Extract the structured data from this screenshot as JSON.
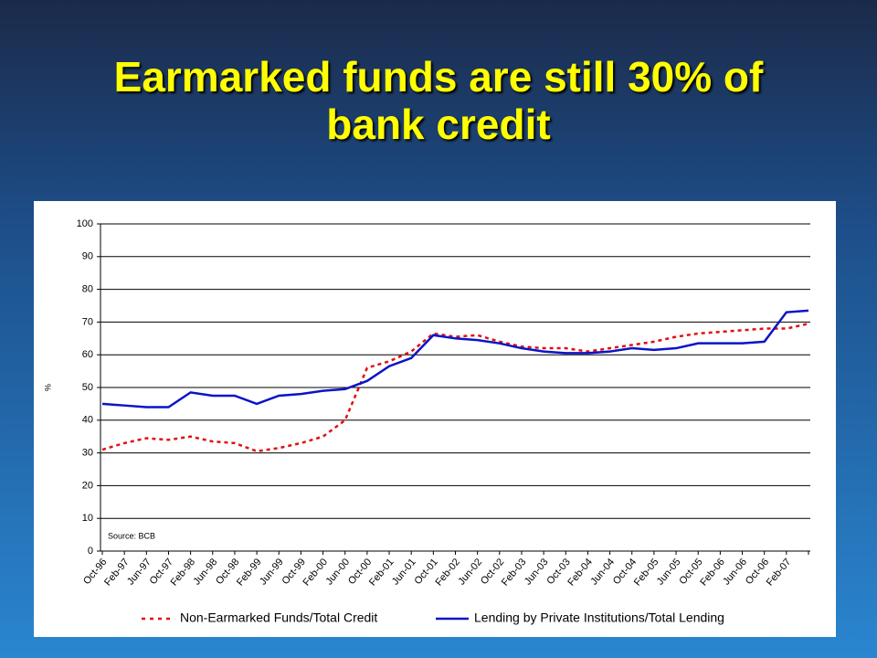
{
  "title": "Earmarked funds are still 30% of bank credit",
  "chart_data": {
    "type": "line",
    "y_label": "%",
    "annotation": "Source: BCB",
    "categories": [
      "Oct-96",
      "Feb-97",
      "Jun-97",
      "Oct-97",
      "Feb-98",
      "Jun-98",
      "Oct-98",
      "Feb-99",
      "Jun-99",
      "Oct-99",
      "Feb-00",
      "Jun-00",
      "Oct-00",
      "Feb-01",
      "Jun-01",
      "Oct-01",
      "Feb-02",
      "Jun-02",
      "Oct-02",
      "Feb-03",
      "Jun-03",
      "Oct-03",
      "Feb-04",
      "Jun-04",
      "Oct-04",
      "Feb-05",
      "Jun-05",
      "Oct-05",
      "Feb-06",
      "Jun-06",
      "Oct-06",
      "Feb-07",
      null
    ],
    "series": [
      {
        "name": "Non-Earmarked Funds/Total Credit",
        "color": "#e01010",
        "dashed": true,
        "values": [
          31,
          33,
          34.5,
          34,
          35,
          33.5,
          33,
          30.5,
          31.5,
          33,
          35,
          40,
          56,
          58,
          61,
          66.5,
          65.5,
          66,
          64,
          62.5,
          62,
          62,
          61,
          62,
          63,
          64,
          65.5,
          66.5,
          67,
          67.5,
          68,
          68,
          69.5
        ]
      },
      {
        "name": "Lending by Private Institutions/Total Lending",
        "color": "#0a14c8",
        "dashed": false,
        "values": [
          45,
          44.5,
          44,
          44,
          48.5,
          47.5,
          47.5,
          45,
          47.5,
          48,
          49,
          49.5,
          52,
          56.5,
          59,
          66,
          65,
          64.5,
          63.5,
          62,
          61,
          60.5,
          60.5,
          61,
          62,
          61.5,
          62,
          63.5,
          63.5,
          63.5,
          64,
          73,
          73.5
        ]
      }
    ],
    "ylim": [
      0,
      100
    ],
    "yticks": [
      0,
      10,
      20,
      30,
      40,
      50,
      60,
      70,
      80,
      90,
      100
    ],
    "grid": true,
    "legend": "bottom"
  }
}
